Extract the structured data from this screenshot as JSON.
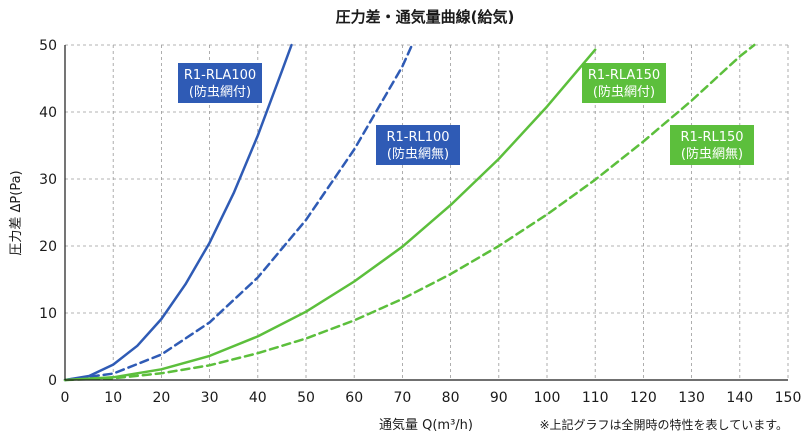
{
  "chart_data": {
    "type": "line",
    "title": "圧力差・通気量曲線(給気)",
    "xlabel": "通気量 Q(m³/h)",
    "ylabel": "圧力差 ΔP(Pa)",
    "note": "※上記グラフは全開時の特性を表しています。",
    "xlim": [
      0,
      150
    ],
    "ylim": [
      0,
      50
    ],
    "xticks": [
      "0",
      "10",
      "20",
      "30",
      "40",
      "50",
      "60",
      "70",
      "80",
      "90",
      "100",
      "110",
      "120",
      "130",
      "140",
      "150"
    ],
    "yticks": [
      "0",
      "10",
      "20",
      "30",
      "40",
      "50"
    ],
    "grid": true,
    "colors": {
      "blue": "#2f5bb5",
      "green": "#5cbf3c"
    },
    "series": [
      {
        "label_lines": [
          "R1-RLA100",
          "(防虫網付)"
        ],
        "color": "#2f5bb5",
        "dash": false,
        "x": [
          0,
          5,
          10,
          15,
          20,
          25,
          30,
          35,
          40,
          45,
          47
        ],
        "y": [
          0,
          0.6,
          2.3,
          5.1,
          9.1,
          14.3,
          20.5,
          27.9,
          36.5,
          46.1,
          50
        ]
      },
      {
        "label_lines": [
          "R1-RL100",
          "(防虫網無)"
        ],
        "color": "#2f5bb5",
        "dash": true,
        "x": [
          0,
          10,
          20,
          30,
          40,
          50,
          60,
          70,
          72
        ],
        "y": [
          0,
          0.95,
          3.8,
          8.6,
          15.3,
          23.9,
          34.4,
          46.8,
          50
        ]
      },
      {
        "label_lines": [
          "R1-RLA150",
          "(防虫網付)"
        ],
        "color": "#5cbf3c",
        "dash": false,
        "x": [
          0,
          10,
          20,
          30,
          40,
          50,
          60,
          70,
          80,
          90,
          100,
          110
        ],
        "y": [
          0,
          0.4,
          1.6,
          3.6,
          6.5,
          10.2,
          14.7,
          19.9,
          26.1,
          33.0,
          40.8,
          49.3
        ]
      },
      {
        "label_lines": [
          "R1-RL150",
          "(防虫網無)"
        ],
        "color": "#5cbf3c",
        "dash": true,
        "x": [
          0,
          10,
          20,
          30,
          40,
          50,
          60,
          70,
          80,
          90,
          100,
          110,
          120,
          130,
          140,
          143
        ],
        "y": [
          0,
          0.25,
          1.0,
          2.2,
          4.0,
          6.2,
          8.9,
          12.1,
          15.8,
          20.0,
          24.7,
          29.9,
          35.6,
          41.7,
          48.3,
          50
        ]
      }
    ]
  }
}
